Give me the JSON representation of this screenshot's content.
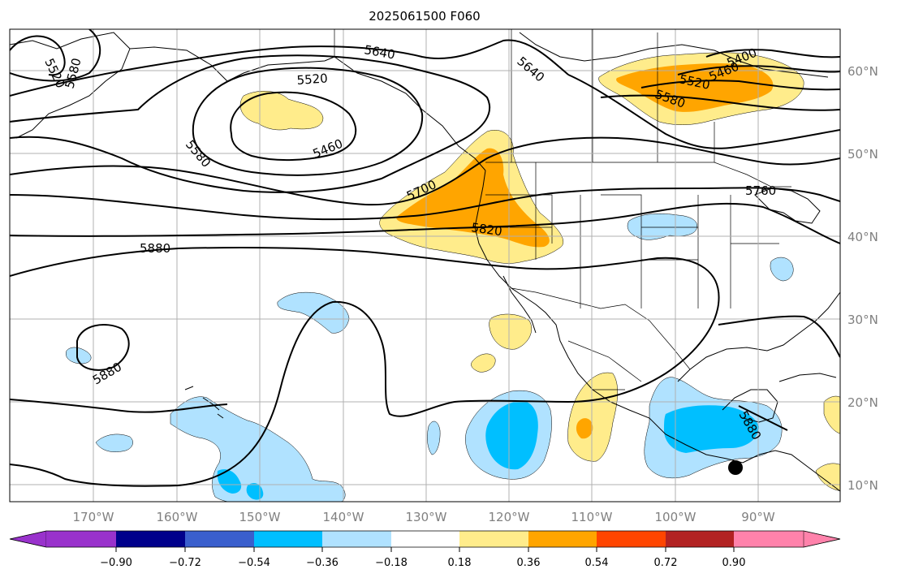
{
  "title": "2025061500 F060",
  "map": {
    "lon_labels": [
      "170°W",
      "160°W",
      "150°W",
      "140°W",
      "130°W",
      "120°W",
      "110°W",
      "100°W",
      "90°W"
    ],
    "lat_labels": [
      "60°N",
      "50°N",
      "40°N",
      "30°N",
      "20°N",
      "10°N"
    ],
    "contour_labels": [
      "5520",
      "5580",
      "5640",
      "5520",
      "5460",
      "5580",
      "5640",
      "5400",
      "5460",
      "5520",
      "5580",
      "5700",
      "5820",
      "5760",
      "5880",
      "5880",
      "5880"
    ],
    "marker": "storm-center-dot"
  },
  "colorbar": {
    "tick_labels": [
      "−0.90",
      "−0.72",
      "−0.54",
      "−0.36",
      "−0.18",
      "0.18",
      "0.36",
      "0.54",
      "0.72",
      "0.90"
    ],
    "colors": [
      "#9932CC",
      "#00008B",
      "#3A5FCD",
      "#00BFFF",
      "#B0E2FF",
      "#FFFFFF",
      "#FFEC8B",
      "#FFA500",
      "#FF4500",
      "#B22222",
      "#FF82AB"
    ]
  }
}
